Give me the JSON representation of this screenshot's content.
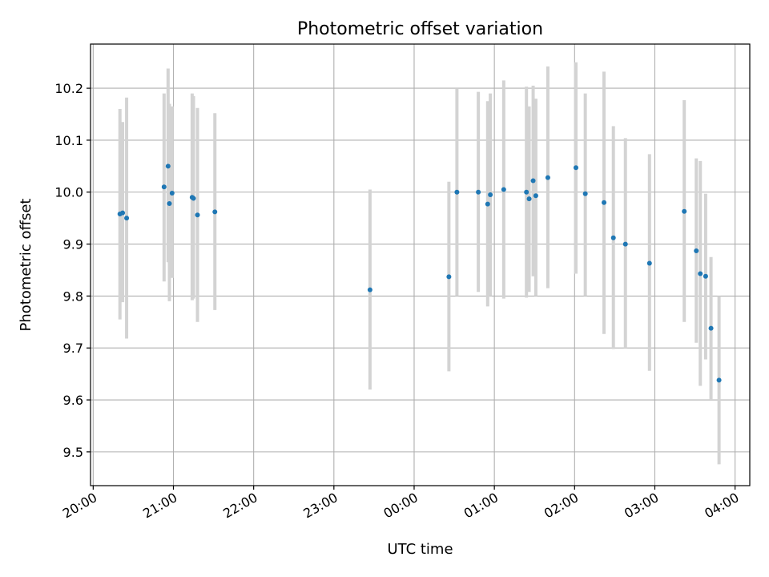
{
  "chart_data": {
    "type": "scatter",
    "title": "Photometric offset variation",
    "xlabel": "UTC time",
    "ylabel": "Photometric offset",
    "x_axis": {
      "type": "time",
      "range": [
        "19:58",
        "04:11"
      ],
      "ticks": [
        "20:00",
        "21:00",
        "22:00",
        "23:00",
        "00:00",
        "01:00",
        "02:00",
        "03:00",
        "04:00"
      ]
    },
    "y_axis": {
      "range": [
        9.435,
        10.285
      ],
      "ticks": [
        "9.5",
        "9.6",
        "9.7",
        "9.8",
        "9.9",
        "10.0",
        "10.1",
        "10.2"
      ]
    },
    "grid": true,
    "colors": {
      "point": "#1f77b4",
      "errorbar": "#d3d3d3",
      "grid": "#b0b0b0"
    },
    "points": [
      {
        "t": "20:20",
        "y": 9.958,
        "low": 9.755,
        "high": 10.16
      },
      {
        "t": "20:22",
        "y": 9.96,
        "low": 9.788,
        "high": 10.135
      },
      {
        "t": "20:25",
        "y": 9.95,
        "low": 9.718,
        "high": 10.182
      },
      {
        "t": "20:53",
        "y": 10.01,
        "low": 9.828,
        "high": 10.19
      },
      {
        "t": "20:56",
        "y": 10.05,
        "low": 9.865,
        "high": 10.238
      },
      {
        "t": "20:57",
        "y": 9.978,
        "low": 9.79,
        "high": 10.17
      },
      {
        "t": "20:59",
        "y": 9.998,
        "low": 9.835,
        "high": 10.165
      },
      {
        "t": "21:14",
        "y": 9.99,
        "low": 9.792,
        "high": 10.19
      },
      {
        "t": "21:15",
        "y": 9.988,
        "low": 9.795,
        "high": 10.185
      },
      {
        "t": "21:18",
        "y": 9.956,
        "low": 9.75,
        "high": 10.162
      },
      {
        "t": "21:31",
        "y": 9.962,
        "low": 9.773,
        "high": 10.152
      },
      {
        "t": "23:27",
        "y": 9.812,
        "low": 9.62,
        "high": 10.005
      },
      {
        "t": "00:26",
        "y": 9.837,
        "low": 9.655,
        "high": 10.02
      },
      {
        "t": "00:32",
        "y": 10.0,
        "low": 9.8,
        "high": 10.2
      },
      {
        "t": "00:48",
        "y": 10.0,
        "low": 9.808,
        "high": 10.193
      },
      {
        "t": "00:55",
        "y": 9.977,
        "low": 9.78,
        "high": 10.175
      },
      {
        "t": "00:57",
        "y": 9.995,
        "low": 9.8,
        "high": 10.19
      },
      {
        "t": "01:07",
        "y": 10.005,
        "low": 9.795,
        "high": 10.215
      },
      {
        "t": "01:24",
        "y": 10.0,
        "low": 9.797,
        "high": 10.203
      },
      {
        "t": "01:26",
        "y": 9.987,
        "low": 9.808,
        "high": 10.165
      },
      {
        "t": "01:29",
        "y": 10.022,
        "low": 9.838,
        "high": 10.205
      },
      {
        "t": "01:31",
        "y": 9.993,
        "low": 9.8,
        "high": 10.18
      },
      {
        "t": "01:40",
        "y": 10.028,
        "low": 9.815,
        "high": 10.242
      },
      {
        "t": "02:01",
        "y": 10.047,
        "low": 9.843,
        "high": 10.25
      },
      {
        "t": "02:08",
        "y": 9.997,
        "low": 9.8,
        "high": 10.19
      },
      {
        "t": "02:22",
        "y": 9.98,
        "low": 9.727,
        "high": 10.232
      },
      {
        "t": "02:29",
        "y": 9.912,
        "low": 9.698,
        "high": 10.127
      },
      {
        "t": "02:38",
        "y": 9.9,
        "low": 9.7,
        "high": 10.104
      },
      {
        "t": "02:56",
        "y": 9.863,
        "low": 9.656,
        "high": 10.073
      },
      {
        "t": "03:22",
        "y": 9.963,
        "low": 9.75,
        "high": 10.177
      },
      {
        "t": "03:31",
        "y": 9.887,
        "low": 9.71,
        "high": 10.065
      },
      {
        "t": "03:34",
        "y": 9.843,
        "low": 9.627,
        "high": 10.06
      },
      {
        "t": "03:38",
        "y": 9.838,
        "low": 9.678,
        "high": 9.997
      },
      {
        "t": "03:42",
        "y": 9.738,
        "low": 9.6,
        "high": 9.875
      },
      {
        "t": "03:48",
        "y": 9.638,
        "low": 9.476,
        "high": 9.8
      }
    ]
  }
}
